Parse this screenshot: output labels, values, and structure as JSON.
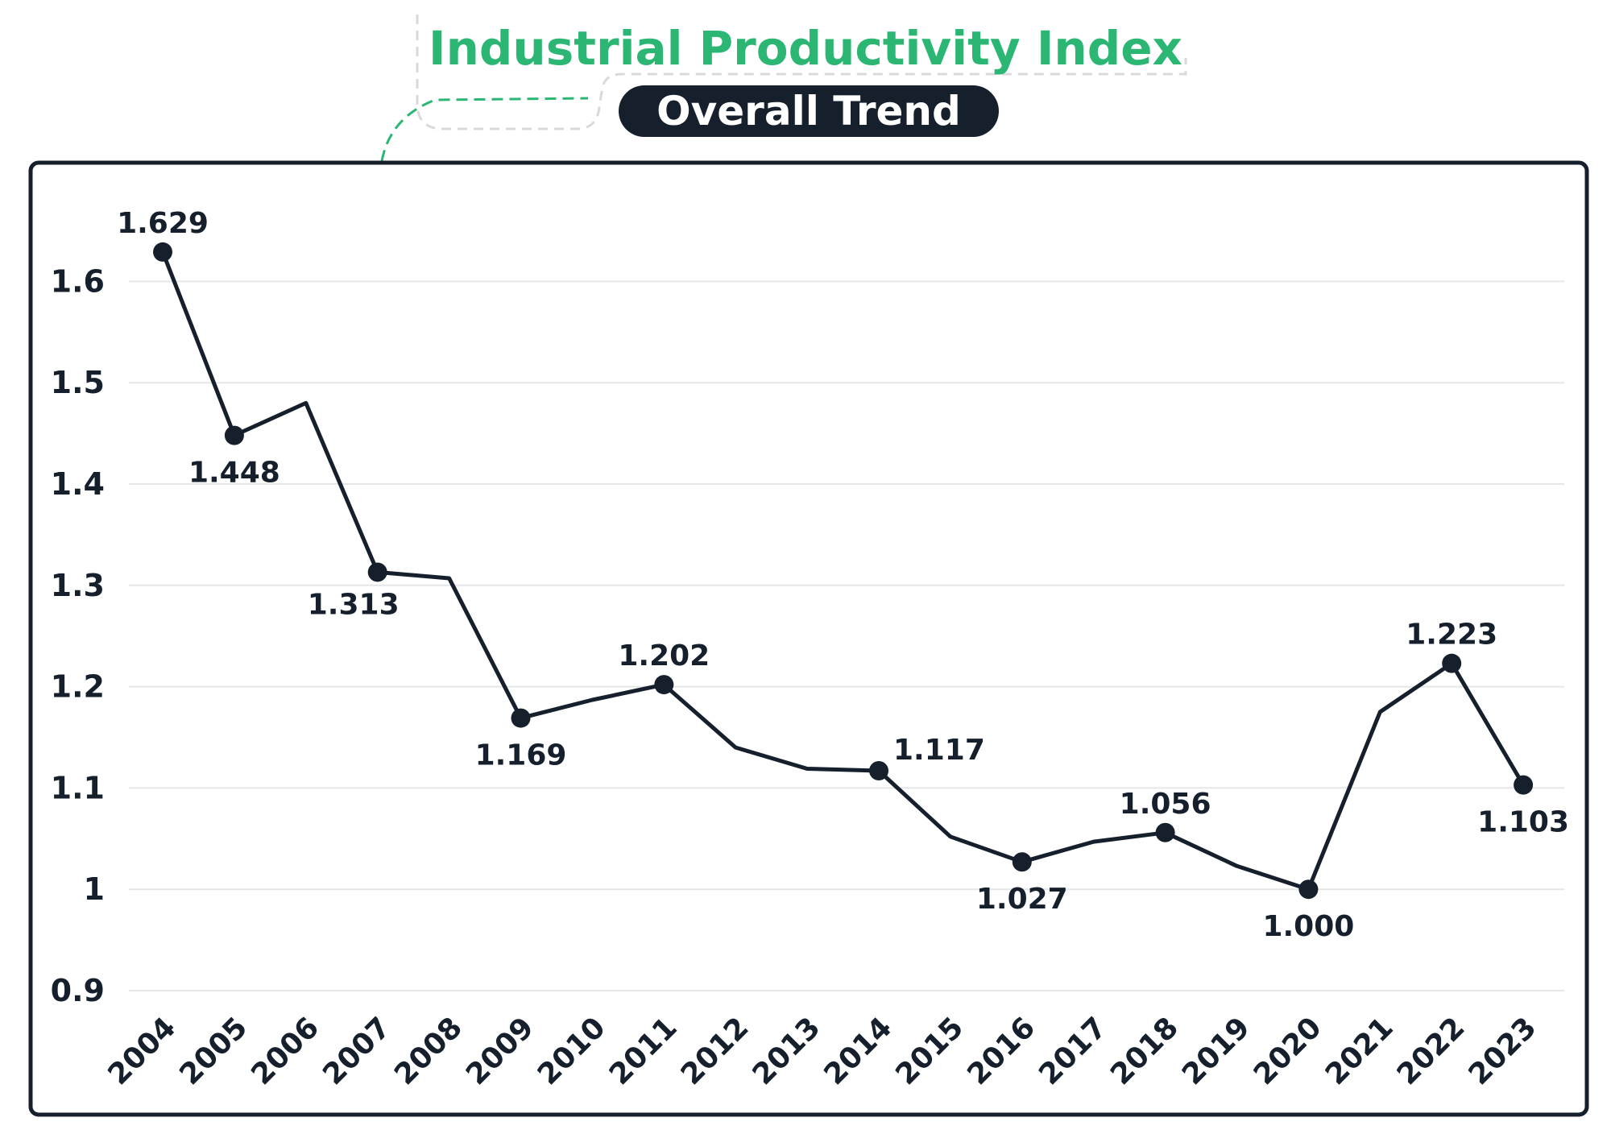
{
  "colors": {
    "accent": "#2bb673",
    "ink": "#16202c",
    "grid": "#e4e6e8",
    "decor_dash": "#d9d9d9"
  },
  "chart_data": {
    "type": "line",
    "title": "Industrial Productivity Index",
    "subtitle": "Overall Trend",
    "xlabel": "",
    "ylabel": "",
    "grid": true,
    "ylim": [
      0.9,
      1.65
    ],
    "yticks": [
      0.9,
      1,
      1.1,
      1.2,
      1.3,
      1.4,
      1.5,
      1.6
    ],
    "ytick_labels": [
      "0.9",
      "1",
      "1.1",
      "1.2",
      "1.3",
      "1.4",
      "1.5",
      "1.6"
    ],
    "x": [
      "2004",
      "2005",
      "2006",
      "2007",
      "2008",
      "2009",
      "2010",
      "2011",
      "2012",
      "2013",
      "2014",
      "2015",
      "2016",
      "2017",
      "2018",
      "2019",
      "2020",
      "2021",
      "2022",
      "2023"
    ],
    "series": [
      {
        "name": "Industrial Productivity Index",
        "values": [
          1.629,
          1.448,
          1.48,
          1.313,
          1.307,
          1.169,
          1.187,
          1.202,
          1.14,
          1.119,
          1.117,
          1.052,
          1.027,
          1.047,
          1.056,
          1.023,
          1.0,
          1.175,
          1.223,
          1.103
        ]
      }
    ],
    "annotations": [
      {
        "x": "2004",
        "label": "1.629",
        "position": "above"
      },
      {
        "x": "2005",
        "label": "1.448",
        "position": "below"
      },
      {
        "x": "2007",
        "label": "1.313",
        "position": "below-left"
      },
      {
        "x": "2009",
        "label": "1.169",
        "position": "below"
      },
      {
        "x": "2011",
        "label": "1.202",
        "position": "above"
      },
      {
        "x": "2014",
        "label": "1.117",
        "position": "above-right"
      },
      {
        "x": "2016",
        "label": "1.027",
        "position": "below"
      },
      {
        "x": "2018",
        "label": "1.056",
        "position": "above"
      },
      {
        "x": "2020",
        "label": "1.000",
        "position": "below"
      },
      {
        "x": "2022",
        "label": "1.223",
        "position": "above"
      },
      {
        "x": "2023",
        "label": "1.103",
        "position": "below"
      }
    ]
  }
}
